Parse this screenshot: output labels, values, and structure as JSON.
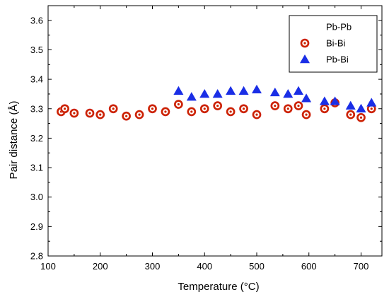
{
  "chart_data": {
    "type": "scatter",
    "xlabel": "Temperature (°C)",
    "ylabel": "Pair distance (Å)",
    "xlim": [
      100,
      740
    ],
    "ylim": [
      2.8,
      3.65
    ],
    "xticks": [
      100,
      200,
      300,
      400,
      500,
      600,
      700
    ],
    "yticks": [
      2.8,
      2.9,
      3.0,
      3.1,
      3.2,
      3.3,
      3.4,
      3.5,
      3.6
    ],
    "grid": false,
    "legend_position": "top-right",
    "series": [
      {
        "name": "Pb-Pb",
        "marker": "none",
        "color": "#ffffff",
        "x": [],
        "y": []
      },
      {
        "name": "Bi-Bi",
        "marker": "ring",
        "color": "#cc2200",
        "x": [
          125,
          132,
          150,
          180,
          200,
          225,
          250,
          275,
          300,
          325,
          350,
          375,
          400,
          425,
          450,
          475,
          500,
          535,
          560,
          580,
          595,
          630,
          650,
          680,
          700,
          720
        ],
        "y": [
          3.29,
          3.3,
          3.285,
          3.285,
          3.28,
          3.3,
          3.275,
          3.28,
          3.3,
          3.29,
          3.315,
          3.29,
          3.3,
          3.31,
          3.29,
          3.3,
          3.28,
          3.31,
          3.3,
          3.31,
          3.28,
          3.3,
          3.32,
          3.28,
          3.27,
          3.3
        ]
      },
      {
        "name": "Pb-Bi",
        "marker": "triangle",
        "color": "#1a2ee6",
        "x": [
          350,
          375,
          400,
          425,
          450,
          475,
          500,
          535,
          560,
          580,
          595,
          630,
          650,
          680,
          700,
          720
        ],
        "y": [
          3.36,
          3.34,
          3.35,
          3.35,
          3.36,
          3.36,
          3.365,
          3.355,
          3.35,
          3.36,
          3.335,
          3.325,
          3.325,
          3.31,
          3.3,
          3.32
        ]
      }
    ]
  }
}
